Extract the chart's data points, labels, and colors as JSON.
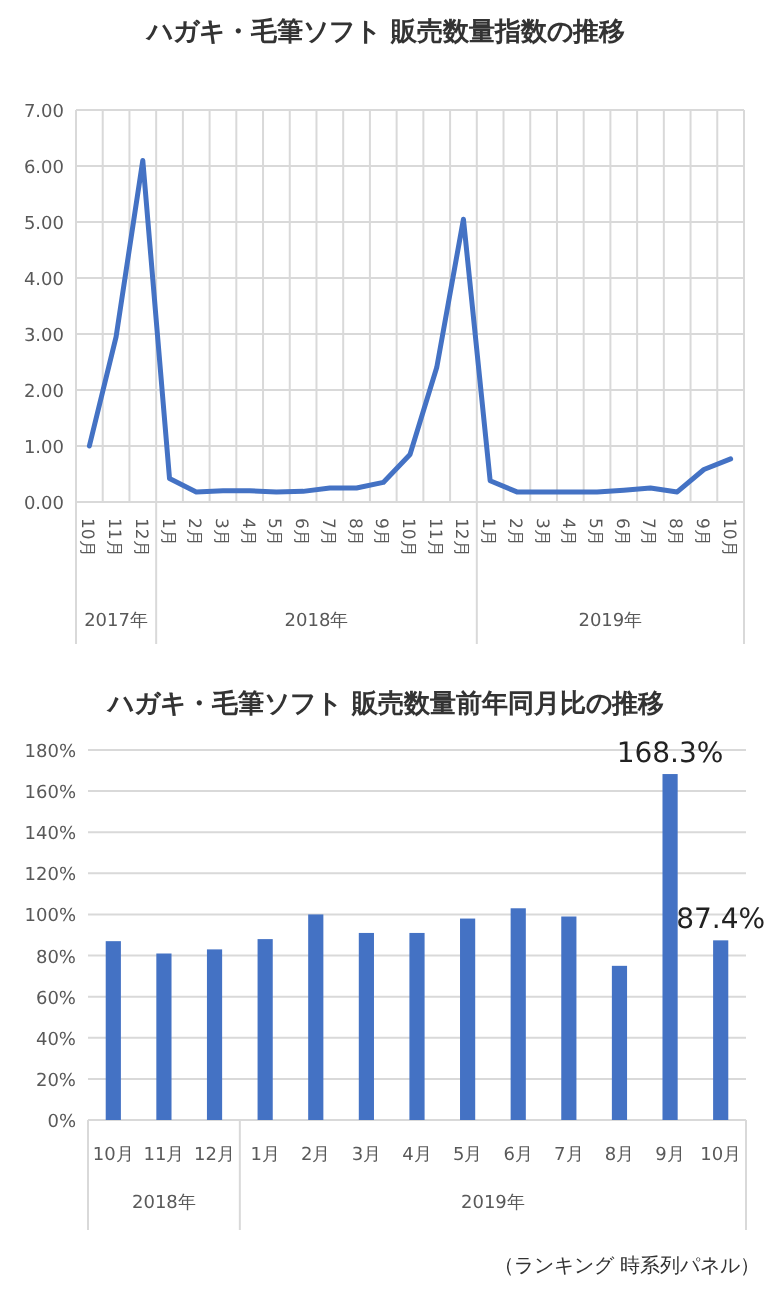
{
  "chart_data": [
    {
      "type": "line",
      "title": "ハガキ・毛筆ソフト 販売数量指数の推移",
      "categories": [
        "10月",
        "11月",
        "12月",
        "1月",
        "2月",
        "3月",
        "4月",
        "5月",
        "6月",
        "7月",
        "8月",
        "9月",
        "10月",
        "11月",
        "12月",
        "1月",
        "2月",
        "3月",
        "4月",
        "5月",
        "6月",
        "7月",
        "8月",
        "9月",
        "10月"
      ],
      "series": [
        {
          "color": "#4472c4",
          "values": [
            1.0,
            2.95,
            6.1,
            0.42,
            0.18,
            0.2,
            0.2,
            0.18,
            0.19,
            0.25,
            0.25,
            0.35,
            0.85,
            2.4,
            5.05,
            0.38,
            0.18,
            0.18,
            0.18,
            0.18,
            0.21,
            0.25,
            0.18,
            0.58,
            0.77
          ]
        }
      ],
      "annotations": [
        "2017年",
        "2018年",
        "2019年"
      ],
      "ylim": [
        0,
        7
      ],
      "yticks": [
        {
          "value": 0,
          "label": "0.00"
        },
        {
          "value": 1,
          "label": "1.00"
        },
        {
          "value": 2,
          "label": "2.00"
        },
        {
          "value": 3,
          "label": "3.00"
        },
        {
          "value": 4,
          "label": "4.00"
        },
        {
          "value": 5,
          "label": "5.00"
        },
        {
          "value": 6,
          "label": "6.00"
        },
        {
          "value": 7,
          "label": "7.00"
        }
      ],
      "grid": true,
      "marker": "none",
      "line_style": "solid"
    },
    {
      "type": "bar",
      "title": "ハガキ・毛筆ソフト 販売数量前年同月比の推移",
      "categories": [
        "10月",
        "11月",
        "12月",
        "1月",
        "2月",
        "3月",
        "4月",
        "5月",
        "6月",
        "7月",
        "8月",
        "9月",
        "10月"
      ],
      "values": [
        87,
        81,
        83,
        88,
        100,
        91,
        91,
        98,
        103,
        99,
        75,
        168.3,
        87.4
      ],
      "color": "#4472c4",
      "value_labels": [
        null,
        null,
        null,
        null,
        null,
        null,
        null,
        null,
        null,
        null,
        null,
        "168.3%",
        "87.4%"
      ],
      "annotations": [
        "2018年",
        "2019年",
        "（ランキング 時系列パネル）"
      ],
      "ylim": [
        0,
        180
      ],
      "yticks": [
        {
          "value": 0,
          "label": "0%"
        },
        {
          "value": 20,
          "label": "20%"
        },
        {
          "value": 40,
          "label": "40%"
        },
        {
          "value": 60,
          "label": "60%"
        },
        {
          "value": 80,
          "label": "80%"
        },
        {
          "value": 100,
          "label": "100%"
        },
        {
          "value": 120,
          "label": "120%"
        },
        {
          "value": 140,
          "label": "140%"
        },
        {
          "value": 160,
          "label": "160%"
        },
        {
          "value": 180,
          "label": "180%"
        }
      ],
      "grid": "y"
    }
  ]
}
